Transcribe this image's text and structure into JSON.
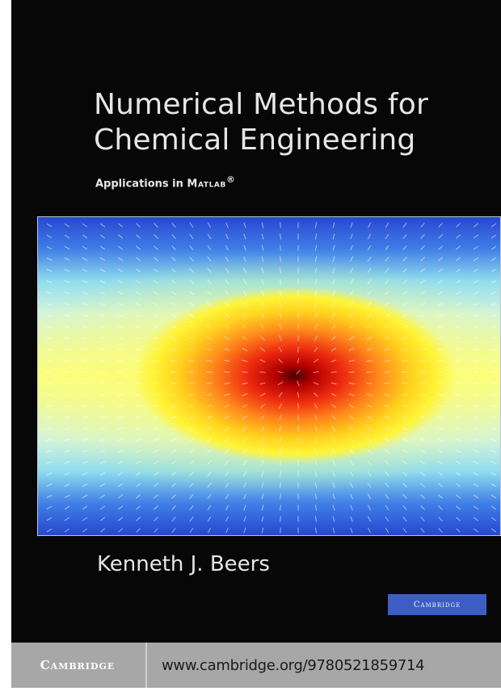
{
  "book": {
    "title_line1": "Numerical Methods for",
    "title_line2": "Chemical Engineering",
    "subtitle_prefix": "Applications in ",
    "subtitle_software": "Matlab",
    "subtitle_mark": "®",
    "author": "Kenneth J. Beers",
    "publisher_badge": "Cambridge"
  },
  "footer": {
    "brand": "Cambridge",
    "url": "www.cambridge.org/9780521859714"
  },
  "colors": {
    "cover_background": "#070707",
    "field_outer": "#2a4fd0",
    "field_core": "#5a0000",
    "badge": "#3c5ec4",
    "footer_band": "#a7a7a7"
  }
}
